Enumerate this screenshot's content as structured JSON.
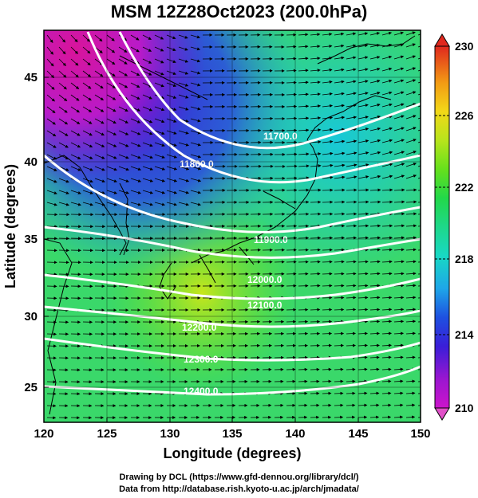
{
  "title": "MSM 12Z28Oct2023 (200.0hPa)",
  "xaxis": {
    "label": "Longitude (degrees)",
    "ticks": [
      "120",
      "125",
      "130",
      "135",
      "140",
      "145",
      "150"
    ],
    "range": [
      120,
      150
    ]
  },
  "yaxis": {
    "label": "Latitude  (degrees)",
    "ticks": [
      "25",
      "30",
      "35",
      "40",
      "45"
    ],
    "range": [
      22.5,
      48
    ]
  },
  "colorbar": {
    "ticks": [
      "230",
      "226",
      "222",
      "218",
      "214",
      "210"
    ],
    "min": 210,
    "max": 230,
    "colors": [
      "#cc14cc",
      "#7a1ad8",
      "#1e2ed8",
      "#1f6fe0",
      "#18b0e8",
      "#18d8c8",
      "#1ed890",
      "#22d84a",
      "#5ee01c",
      "#aee41c",
      "#d8e41c",
      "#f4d818",
      "#f4a014",
      "#ec5a14",
      "#d8281e"
    ]
  },
  "contour_labels": [
    "11700.0",
    "11800.0",
    "11900.0",
    "12000.0",
    "12100.0",
    "12200.0",
    "12300.0",
    "12400.0"
  ],
  "credits": {
    "line1": "Drawing by DCL (https://www.gfd-dennou.org/library/dcl/)",
    "line2": "Data from http://database.rish.kyoto-u.ac.jp/arch/jmadata/"
  }
}
